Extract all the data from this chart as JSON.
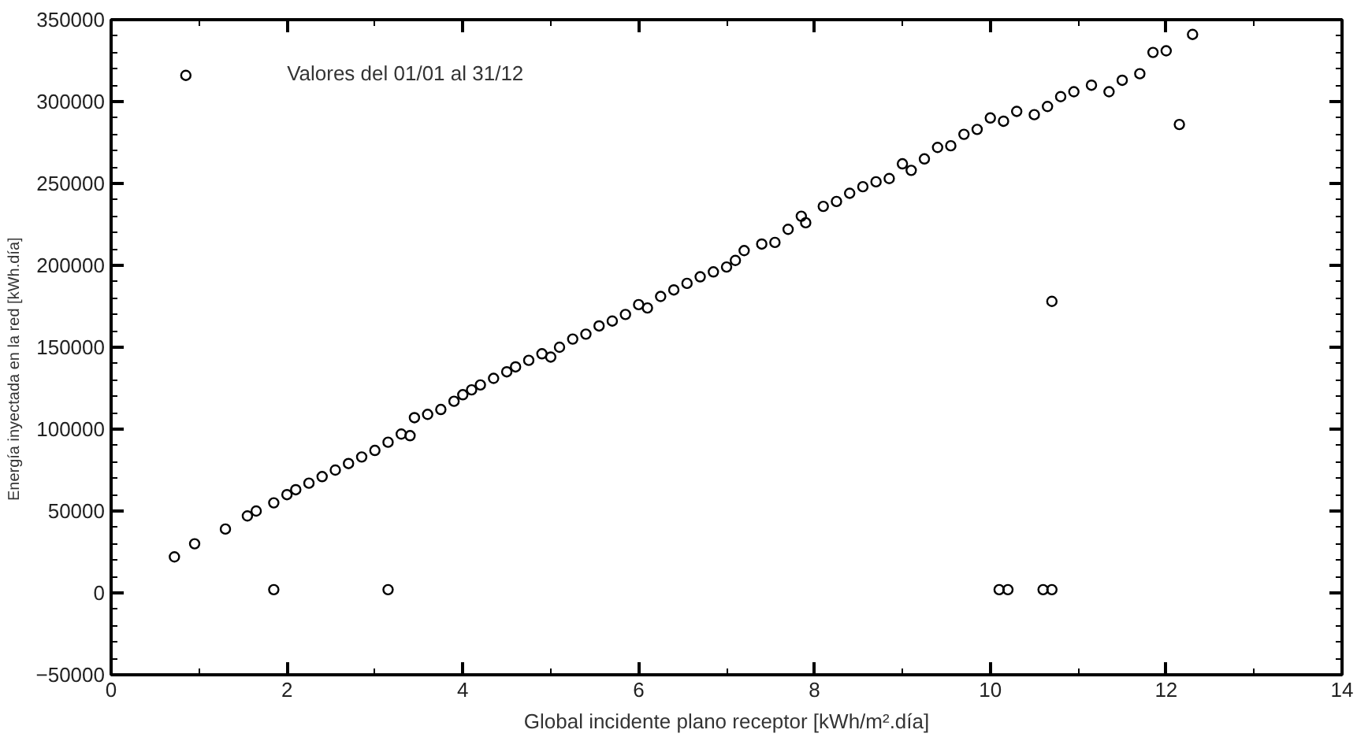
{
  "chart_data": {
    "type": "scatter",
    "xlabel": "Global incidente plano receptor [kWh/m².día]",
    "ylabel": "Energía   inyectada   en   la   red   [kWh.día]",
    "annotations": [
      "Valores del 01/01 al 31/12"
    ],
    "xlim": [
      0,
      14
    ],
    "ylim": [
      -50000,
      350000
    ],
    "xticks": [
      0,
      2,
      4,
      6,
      8,
      10,
      12,
      14
    ],
    "yticks": [
      -50000,
      0,
      50000,
      100000,
      150000,
      200000,
      250000,
      300000,
      350000
    ],
    "grid": false,
    "marker": "circle",
    "series": [
      {
        "color": "#000000",
        "x": [
          0.72,
          0.95,
          1.3,
          1.55,
          1.65,
          1.85,
          2.0,
          2.1,
          2.25,
          2.4,
          2.55,
          2.7,
          2.85,
          3.0,
          3.15,
          3.3,
          3.4,
          3.45,
          3.6,
          3.75,
          3.9,
          4.0,
          4.1,
          4.2,
          4.35,
          4.5,
          4.6,
          4.75,
          4.9,
          5.0,
          5.1,
          5.25,
          5.4,
          5.55,
          5.7,
          5.85,
          6.0,
          6.1,
          6.25,
          6.4,
          6.55,
          6.7,
          6.85,
          7.0,
          7.1,
          7.2,
          7.4,
          7.55,
          7.7,
          7.85,
          7.9,
          8.1,
          8.25,
          8.4,
          8.55,
          8.7,
          8.85,
          9.0,
          9.1,
          9.25,
          9.4,
          9.55,
          9.7,
          9.85,
          10.0,
          10.15,
          10.3,
          10.5,
          10.65,
          10.8,
          10.95,
          11.15,
          11.35,
          11.5,
          11.7,
          11.85,
          12.0,
          0.85,
          1.85,
          3.15,
          10.1,
          10.2,
          10.6,
          10.7,
          10.7,
          12.15,
          12.3
        ],
        "values": [
          22000,
          30000,
          39000,
          47000,
          50000,
          55000,
          60000,
          63000,
          67000,
          71000,
          75000,
          79000,
          83000,
          87000,
          92000,
          97000,
          96000,
          107000,
          109000,
          112000,
          117000,
          121000,
          124000,
          127000,
          131000,
          135000,
          138000,
          142000,
          146000,
          144000,
          150000,
          155000,
          158000,
          163000,
          166000,
          170000,
          176000,
          174000,
          181000,
          185000,
          189000,
          193000,
          196000,
          199000,
          203000,
          209000,
          213000,
          214000,
          222000,
          230000,
          226000,
          236000,
          239000,
          244000,
          248000,
          251000,
          253000,
          262000,
          258000,
          265000,
          272000,
          273000,
          280000,
          283000,
          290000,
          288000,
          294000,
          292000,
          297000,
          303000,
          306000,
          310000,
          306000,
          313000,
          317000,
          330000,
          331000,
          316000,
          2000,
          2000,
          2000,
          2000,
          2000,
          2000,
          178000,
          286000,
          341000
        ]
      }
    ]
  }
}
